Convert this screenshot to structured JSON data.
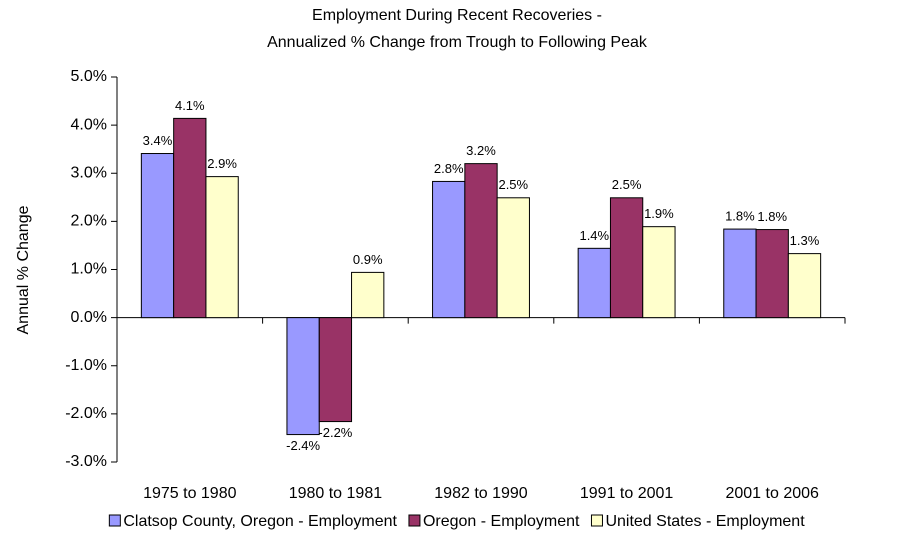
{
  "chart_data": {
    "type": "bar",
    "title": [
      "Employment During Recent Recoveries -",
      "Annualized % Change from Trough to Following Peak"
    ],
    "y_label": "Annual % Change",
    "categories": [
      "1975 to 1980",
      "1980 to 1981",
      "1982 to 1990",
      "1991 to 2001",
      "2001 to 2006"
    ],
    "series": [
      {
        "name": "Clatsop County, Oregon - Employment",
        "color": "#9999ff",
        "values": [
          3.41,
          -2.43,
          2.83,
          1.44,
          1.84
        ],
        "value_labels": [
          "3.4%",
          "-2.4%",
          "2.8%",
          "1.4%",
          "1.8%"
        ]
      },
      {
        "name": "Oregon - Employment",
        "color": "#993366",
        "values": [
          4.14,
          -2.16,
          3.2,
          2.49,
          1.83
        ],
        "value_labels": [
          "4.1%",
          "-2.2%",
          "3.2%",
          "2.5%",
          "1.8%"
        ]
      },
      {
        "name": "United States - Employment",
        "color": "#ffffcc",
        "values": [
          2.93,
          0.94,
          2.49,
          1.89,
          1.33
        ],
        "value_labels": [
          "2.9%",
          "0.9%",
          "2.5%",
          "1.9%",
          "1.3%"
        ]
      }
    ],
    "ylim": [
      -3,
      5
    ],
    "yticks": [
      {
        "value": -3,
        "label": "-3.0%"
      },
      {
        "value": -2,
        "label": "-2.0%"
      },
      {
        "value": -1,
        "label": "-1.0%"
      },
      {
        "value": 0,
        "label": "0.0%"
      },
      {
        "value": 1,
        "label": "1.0%"
      },
      {
        "value": 2,
        "label": "2.0%"
      },
      {
        "value": 3,
        "label": "3.0%"
      },
      {
        "value": 4,
        "label": "4.0%"
      },
      {
        "value": 5,
        "label": "5.0%"
      }
    ],
    "grid": false,
    "legend": "bottom"
  }
}
